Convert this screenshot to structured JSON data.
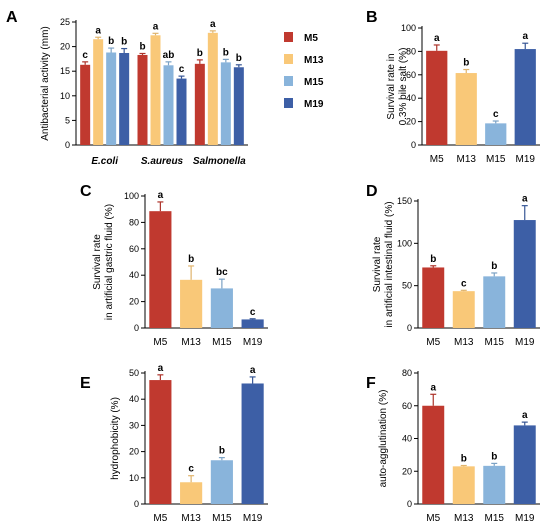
{
  "colors": {
    "M5": "#c0392f",
    "M13": "#f9c878",
    "M15": "#89b4db",
    "M19": "#3d5fa6"
  },
  "legend": [
    "M5",
    "M13",
    "M15",
    "M19"
  ],
  "chart_data": [
    {
      "panel": "A",
      "type": "bar",
      "ylabel": "Antibacterial activity (mm)",
      "ylim": [
        0,
        25
      ],
      "yticks": [
        0,
        5,
        10,
        15,
        20,
        25
      ],
      "categories": [
        "E.coli",
        "S.aureus",
        "Salmonella"
      ],
      "series": [
        {
          "name": "M5",
          "values": [
            16.3,
            18.3,
            16.5
          ],
          "errors": [
            0.6,
            0.3,
            0.8
          ],
          "letters": [
            "c",
            "b",
            "b"
          ]
        },
        {
          "name": "M13",
          "values": [
            21.5,
            22.3,
            22.8
          ],
          "errors": [
            0.4,
            0.4,
            0.4
          ],
          "letters": [
            "a",
            "a",
            "a"
          ]
        },
        {
          "name": "M15",
          "values": [
            18.8,
            16.2,
            16.8
          ],
          "errors": [
            0.9,
            0.7,
            0.6
          ],
          "letters": [
            "b",
            "ab",
            "b"
          ]
        },
        {
          "name": "M19",
          "values": [
            18.7,
            13.5,
            15.8
          ],
          "errors": [
            0.9,
            0.5,
            0.5
          ],
          "letters": [
            "b",
            "c",
            "b"
          ]
        }
      ]
    },
    {
      "panel": "B",
      "type": "bar",
      "ylabel_lines": [
        "Survival rate in",
        "0.3% bile salt (%)"
      ],
      "ylim": [
        0,
        100
      ],
      "yticks": [
        0,
        20,
        40,
        60,
        80,
        100
      ],
      "categories": [
        "M5",
        "M13",
        "M15",
        "M19"
      ],
      "values": [
        80.5,
        61.5,
        18.5,
        82.0
      ],
      "errors": [
        5.0,
        3.0,
        2.0,
        5.0
      ],
      "letters": [
        "a",
        "b",
        "c",
        "a"
      ]
    },
    {
      "panel": "C",
      "type": "bar",
      "ylabel_lines": [
        "Survival rate",
        "in artificial gastric fluid (%)"
      ],
      "ylim": [
        0,
        100
      ],
      "yticks": [
        0,
        20,
        40,
        60,
        80,
        100
      ],
      "categories": [
        "M5",
        "M13",
        "M15",
        "M19"
      ],
      "values": [
        88.5,
        36.5,
        30.0,
        6.5
      ],
      "errors": [
        7.0,
        10.5,
        7.0,
        0.5
      ],
      "letters": [
        "a",
        "b",
        "bc",
        "c"
      ]
    },
    {
      "panel": "D",
      "type": "bar",
      "ylabel_lines": [
        "Survival rate",
        "in artificial intestinal fluid (%)"
      ],
      "ylim": [
        0,
        150
      ],
      "yticks": [
        0,
        50,
        100,
        150
      ],
      "categories": [
        "M5",
        "M13",
        "M15",
        "M19"
      ],
      "values": [
        71.5,
        43.5,
        61.0,
        127.5
      ],
      "errors": [
        2.0,
        1.0,
        4.0,
        17.0
      ],
      "letters": [
        "b",
        "c",
        "b",
        "a"
      ]
    },
    {
      "panel": "E",
      "type": "bar",
      "ylabel": "hydrophobicity (%)",
      "ylim": [
        0,
        50
      ],
      "yticks": [
        0,
        10,
        20,
        30,
        40,
        50
      ],
      "categories": [
        "M5",
        "M13",
        "M15",
        "M19"
      ],
      "values": [
        47.3,
        8.3,
        16.7,
        46.0
      ],
      "errors": [
        2.0,
        2.5,
        1.0,
        2.5
      ],
      "letters": [
        "a",
        "c",
        "b",
        "a"
      ]
    },
    {
      "panel": "F",
      "type": "bar",
      "ylabel": "auto-agglutination (%)",
      "ylim": [
        0,
        80
      ],
      "yticks": [
        0,
        20,
        40,
        60,
        80
      ],
      "categories": [
        "M5",
        "M13",
        "M15",
        "M19"
      ],
      "values": [
        60.0,
        23.0,
        23.3,
        48.0
      ],
      "errors": [
        7.0,
        0.5,
        1.5,
        2.0
      ],
      "letters": [
        "a",
        "b",
        "b",
        "a"
      ]
    }
  ]
}
